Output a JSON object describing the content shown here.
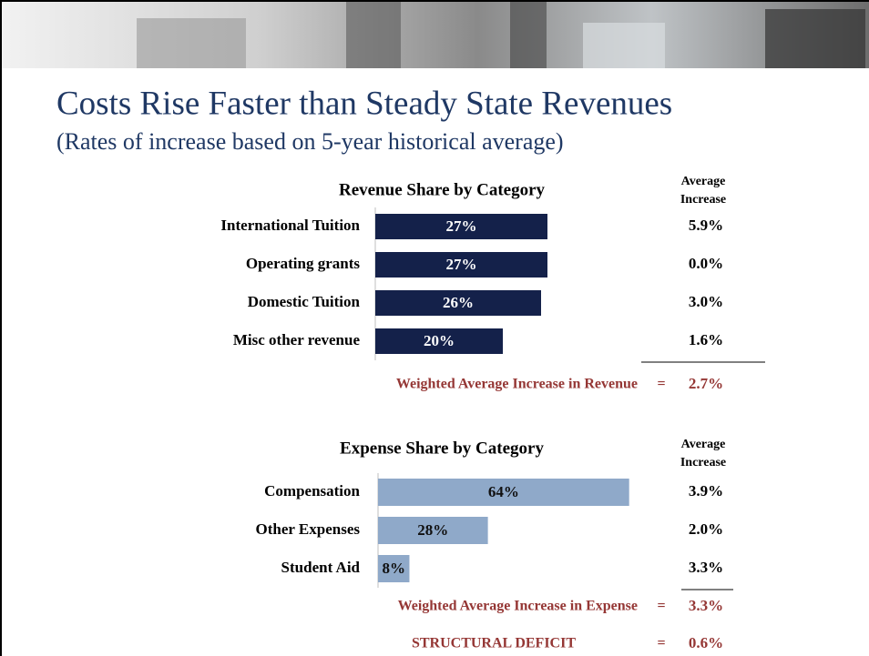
{
  "title": "Costs Rise Faster than Steady State Revenues",
  "subtitle": "(Rates of increase based on 5-year historical average)",
  "chart_data": [
    {
      "type": "bar",
      "orientation": "horizontal",
      "title": "Revenue Share by Category",
      "categories": [
        "International Tuition",
        "Operating grants",
        "Domestic Tuition",
        "Misc other revenue"
      ],
      "values": [
        27,
        27,
        26,
        20
      ],
      "value_labels": [
        "27%",
        "27%",
        "26%",
        "20%"
      ],
      "color": "#14214a",
      "label_color": "#ffffff",
      "xlim": [
        0,
        40
      ],
      "side_column": {
        "header": [
          "Average",
          "Increase"
        ],
        "cells": [
          "5.9%",
          "0.0%",
          "3.0%",
          "1.6%"
        ]
      },
      "summary": {
        "label": "Weighted Average Increase in Revenue",
        "sign": "=",
        "value": "2.7%"
      }
    },
    {
      "type": "bar",
      "orientation": "horizontal",
      "title": "Expense Share by Category",
      "categories": [
        "Compensation",
        "Other Expenses",
        "Student Aid"
      ],
      "values": [
        64,
        28,
        8
      ],
      "value_labels": [
        "64%",
        "28%",
        "8%"
      ],
      "color": "#8fa9c9",
      "label_color": "#111111",
      "xlim": [
        0,
        65
      ],
      "side_column": {
        "header": [
          "Average",
          "Increase"
        ],
        "cells": [
          "3.9%",
          "2.0%",
          "3.3%"
        ]
      },
      "summary": {
        "label": "Weighted Average Increase in Expense",
        "sign": "=",
        "value": "3.3%"
      }
    }
  ],
  "deficit": {
    "label": "STRUCTURAL DEFICIT",
    "sign": "=",
    "value": "0.6%"
  }
}
